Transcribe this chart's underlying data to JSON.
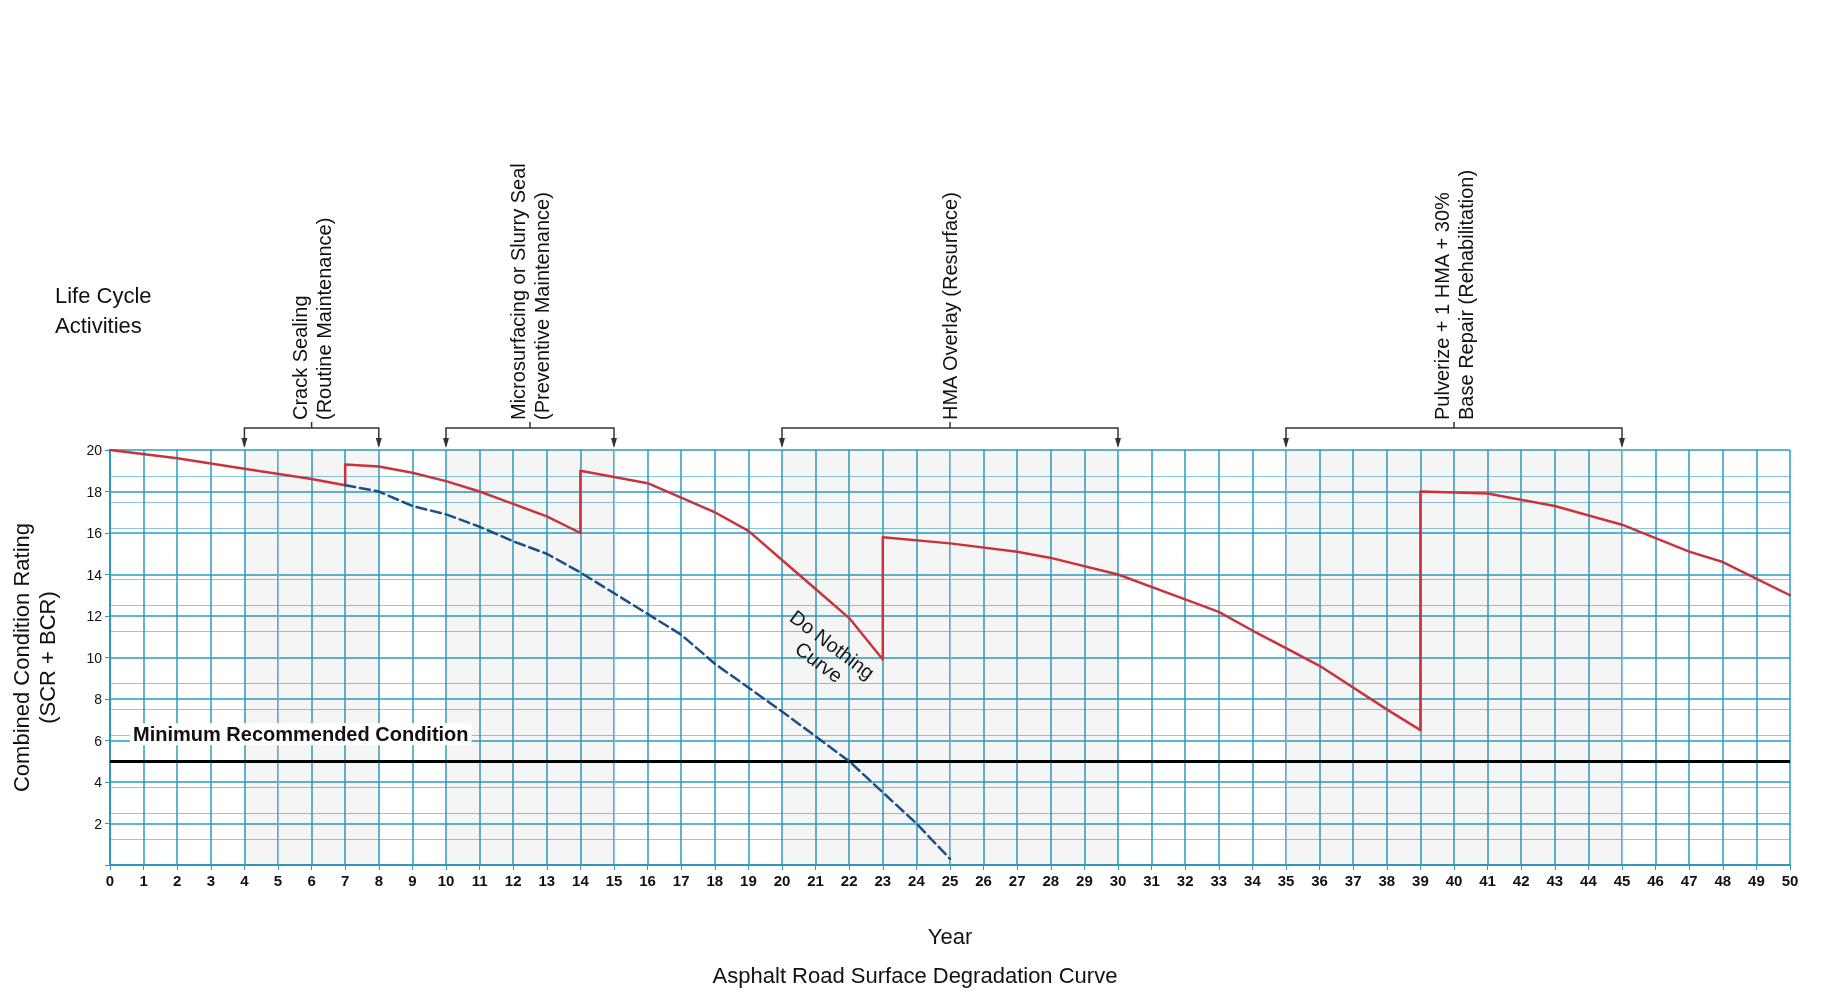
{
  "chart_data": {
    "type": "line",
    "title": "Asphalt Road Surface Degradation Curve",
    "xlabel": "Year",
    "ylabel": "Combined Condition Rating\n(SCR + BCR)",
    "xlim": [
      0,
      50
    ],
    "ylim": [
      0,
      20
    ],
    "xticks": [
      0,
      1,
      2,
      3,
      4,
      5,
      6,
      7,
      8,
      9,
      10,
      11,
      12,
      13,
      14,
      15,
      16,
      17,
      18,
      19,
      20,
      21,
      22,
      23,
      24,
      25,
      26,
      27,
      28,
      29,
      30,
      31,
      32,
      33,
      34,
      35,
      36,
      37,
      38,
      39,
      40,
      41,
      42,
      43,
      44,
      45,
      46,
      47,
      48,
      49,
      50
    ],
    "yticks": [
      {
        "value": 0,
        "label": null
      },
      2,
      4,
      6,
      8,
      10,
      12,
      14,
      16,
      18,
      20
    ],
    "grid": true,
    "marker": "none",
    "series": [
      {
        "color": "#c8343c",
        "line_style": "solid",
        "x": [
          0,
          2,
          4,
          6,
          7,
          7,
          8,
          9,
          10,
          11,
          12,
          13,
          14,
          14,
          15,
          16,
          17,
          18,
          19,
          20,
          21,
          22,
          23,
          23,
          25,
          27,
          28,
          30,
          32,
          33,
          34,
          36,
          38,
          39,
          39,
          41,
          43,
          45,
          47,
          48,
          50
        ],
        "values": [
          20,
          19.6,
          19.1,
          18.6,
          18.3,
          19.3,
          19.2,
          18.9,
          18.5,
          18,
          17.4,
          16.8,
          16,
          19,
          18.7,
          18.4,
          17.7,
          17,
          16.1,
          14.7,
          13.3,
          11.9,
          9.9,
          15.8,
          15.5,
          15.1,
          14.8,
          14,
          12.8,
          12.2,
          11.3,
          9.6,
          7.5,
          6.5,
          18,
          17.9,
          17.3,
          16.4,
          15.1,
          14.6,
          13
        ]
      },
      {
        "color": "#1a4f8a",
        "line_style": "dashed",
        "x": [
          7,
          8,
          9,
          10,
          11,
          12,
          13,
          14,
          15,
          16,
          17,
          18,
          20,
          22,
          24,
          25
        ],
        "values": [
          18.3,
          18,
          17.3,
          16.9,
          16.3,
          15.6,
          15,
          14.1,
          13.1,
          12.1,
          11.1,
          9.7,
          7.4,
          5,
          2,
          0.3
        ]
      }
    ],
    "ref_lines": [
      {
        "axis": "y",
        "value": 5,
        "label": "Minimum Recommended Condition",
        "color": "#000000",
        "line_style": "solid"
      }
    ],
    "bands": [
      {
        "axis": "x",
        "from": 4,
        "to": 8,
        "label": "Crack Sealing\n(Routine Maintenance)"
      },
      {
        "axis": "x",
        "from": 10,
        "to": 15,
        "label": "Microsurfacing or Slurry Seal\n(Preventive Maintenance)"
      },
      {
        "axis": "x",
        "from": 20,
        "to": 30,
        "label": "HMA Overlay (Resurface)"
      },
      {
        "axis": "x",
        "from": 35,
        "to": 45,
        "label": "Pulverize + 1 HMA + 30%\nBase Repair (Rehabilitation)"
      }
    ],
    "annotations": [
      "Life Cycle\nActivities",
      "Do Nothing\nCurve"
    ]
  }
}
